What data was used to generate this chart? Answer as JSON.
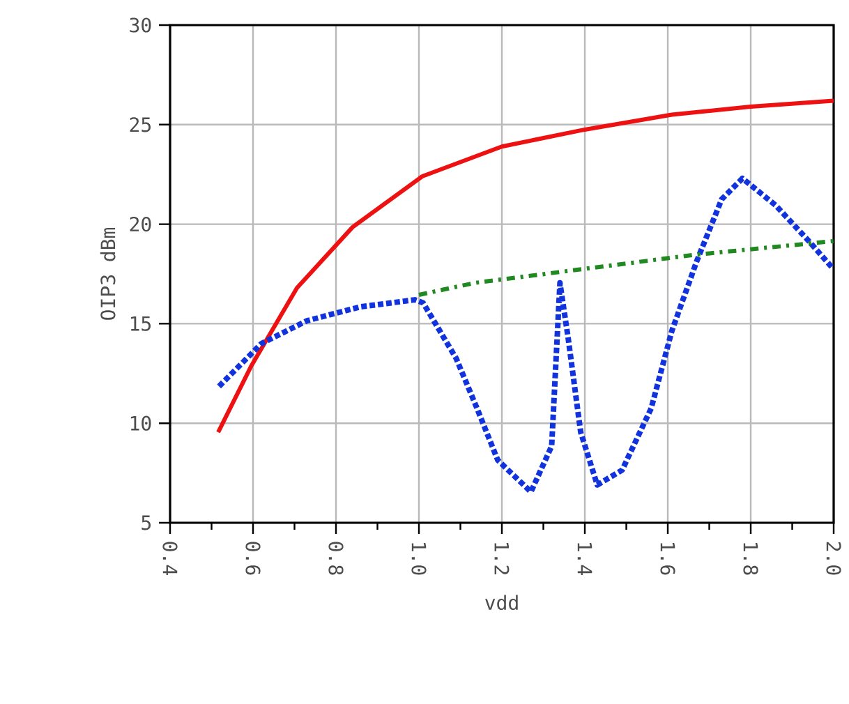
{
  "chart_data": {
    "type": "line",
    "xlabel": "vdd",
    "ylabel": "OIP3 dBm",
    "xlim": [
      0.4,
      2.0
    ],
    "xticks": [
      {
        "value": 0.4,
        "label": "0.4"
      },
      {
        "value": 0.6,
        "label": "0.6"
      },
      {
        "value": 0.8,
        "label": "0.8"
      },
      {
        "value": 1.0,
        "label": "1.0"
      },
      {
        "value": 1.2,
        "label": "1.2"
      },
      {
        "value": 1.4,
        "label": "1.4"
      },
      {
        "value": 1.6,
        "label": "1.6"
      },
      {
        "value": 1.8,
        "label": "1.8"
      },
      {
        "value": 2.0,
        "label": "2.0"
      }
    ],
    "ylim": [
      5,
      30
    ],
    "yticks": [
      5,
      10,
      15,
      20,
      25,
      30
    ],
    "grid": true,
    "marker": "none",
    "series": [
      {
        "color": "#ee1111",
        "line_style": "solid",
        "x": [
          0.516,
          0.595,
          0.706,
          0.84,
          1.008,
          1.2,
          1.4,
          1.61,
          1.8,
          2.0
        ],
        "values": [
          9.55,
          12.85,
          16.8,
          19.85,
          22.4,
          23.9,
          24.75,
          25.5,
          25.9,
          26.2
        ]
      },
      {
        "color": "#1133dd",
        "line_style": "dotted",
        "x": [
          0.518,
          0.62,
          0.73,
          0.86,
          0.99,
          1.01,
          1.09,
          1.14,
          1.19,
          1.27,
          1.32,
          1.34,
          1.36,
          1.39,
          1.43,
          1.49,
          1.56,
          1.61,
          1.67,
          1.73,
          1.78,
          1.86,
          1.94,
          1.997
        ],
        "values": [
          11.85,
          14.0,
          15.15,
          15.85,
          16.2,
          16.05,
          13.25,
          10.75,
          8.15,
          6.55,
          8.85,
          17.05,
          14.25,
          9.55,
          6.9,
          7.65,
          10.75,
          14.65,
          18.15,
          21.25,
          22.3,
          20.95,
          19.15,
          17.8
        ]
      },
      {
        "color": "#228822",
        "line_style": "dashed",
        "x": [
          1.0,
          1.135,
          1.66,
          2.0
        ],
        "values": [
          16.45,
          17.05,
          18.45,
          19.15
        ]
      }
    ]
  }
}
